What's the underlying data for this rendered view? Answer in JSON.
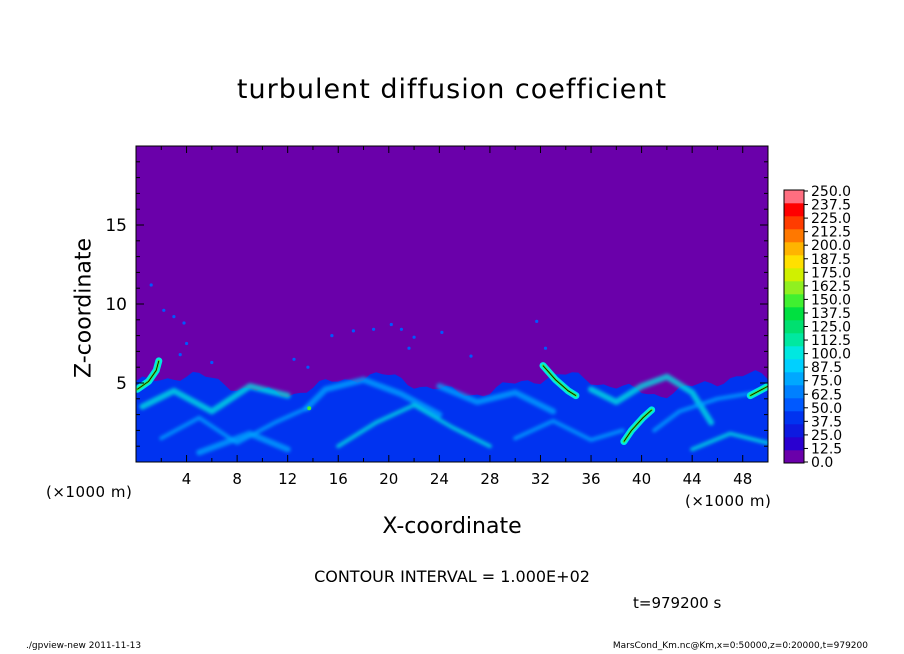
{
  "chart_data": {
    "type": "heatmap",
    "title": "turbulent diffusion coefficient",
    "xlabel": "X-coordinate",
    "ylabel": "Z-coordinate",
    "x_unit_left": "(×1000 m)",
    "x_unit_right": "(×1000 m)",
    "xlim": [
      0,
      50
    ],
    "ylim": [
      0,
      20
    ],
    "x_ticks": [
      4,
      8,
      12,
      16,
      20,
      24,
      28,
      32,
      36,
      40,
      44,
      48
    ],
    "y_ticks": [
      5,
      10,
      15
    ],
    "colorbar": {
      "levels": [
        "0.0",
        "12.5",
        "25.0",
        "37.5",
        "50.0",
        "62.5",
        "75.0",
        "87.5",
        "100.0",
        "112.5",
        "125.0",
        "137.5",
        "150.0",
        "162.5",
        "175.0",
        "187.5",
        "200.0",
        "212.5",
        "225.0",
        "237.5",
        "250.0"
      ],
      "colors": [
        "#6a00aa",
        "#2a00d0",
        "#0d1ae0",
        "#0033f0",
        "#0059ff",
        "#0080ff",
        "#00a8ff",
        "#00d0ff",
        "#00e8e0",
        "#00e8a0",
        "#00e070",
        "#00e040",
        "#40f030",
        "#90f020",
        "#d0f000",
        "#ffe000",
        "#ffb400",
        "#ff7800",
        "#ff3c00",
        "#ff0000",
        "#ff6e80"
      ]
    },
    "field_summary": {
      "background_value": "0.0",
      "turbulent_layer_top_km": 5,
      "peak_locations_x_km": [
        1,
        13.5,
        34,
        39.5,
        49
      ]
    },
    "contour_interval": "CONTOUR INTERVAL = 1.000E+02",
    "time_label": "t=979200 s"
  },
  "footer": {
    "left": "./gpview-new  2011-11-13",
    "right": "MarsCond_Km.nc@Km,x=0:50000,z=0:20000,t=979200"
  },
  "colors": {
    "background_field": "#6a00aa",
    "low_turbulence": "#0033f0",
    "high_turbulence": "#00e8e0"
  }
}
